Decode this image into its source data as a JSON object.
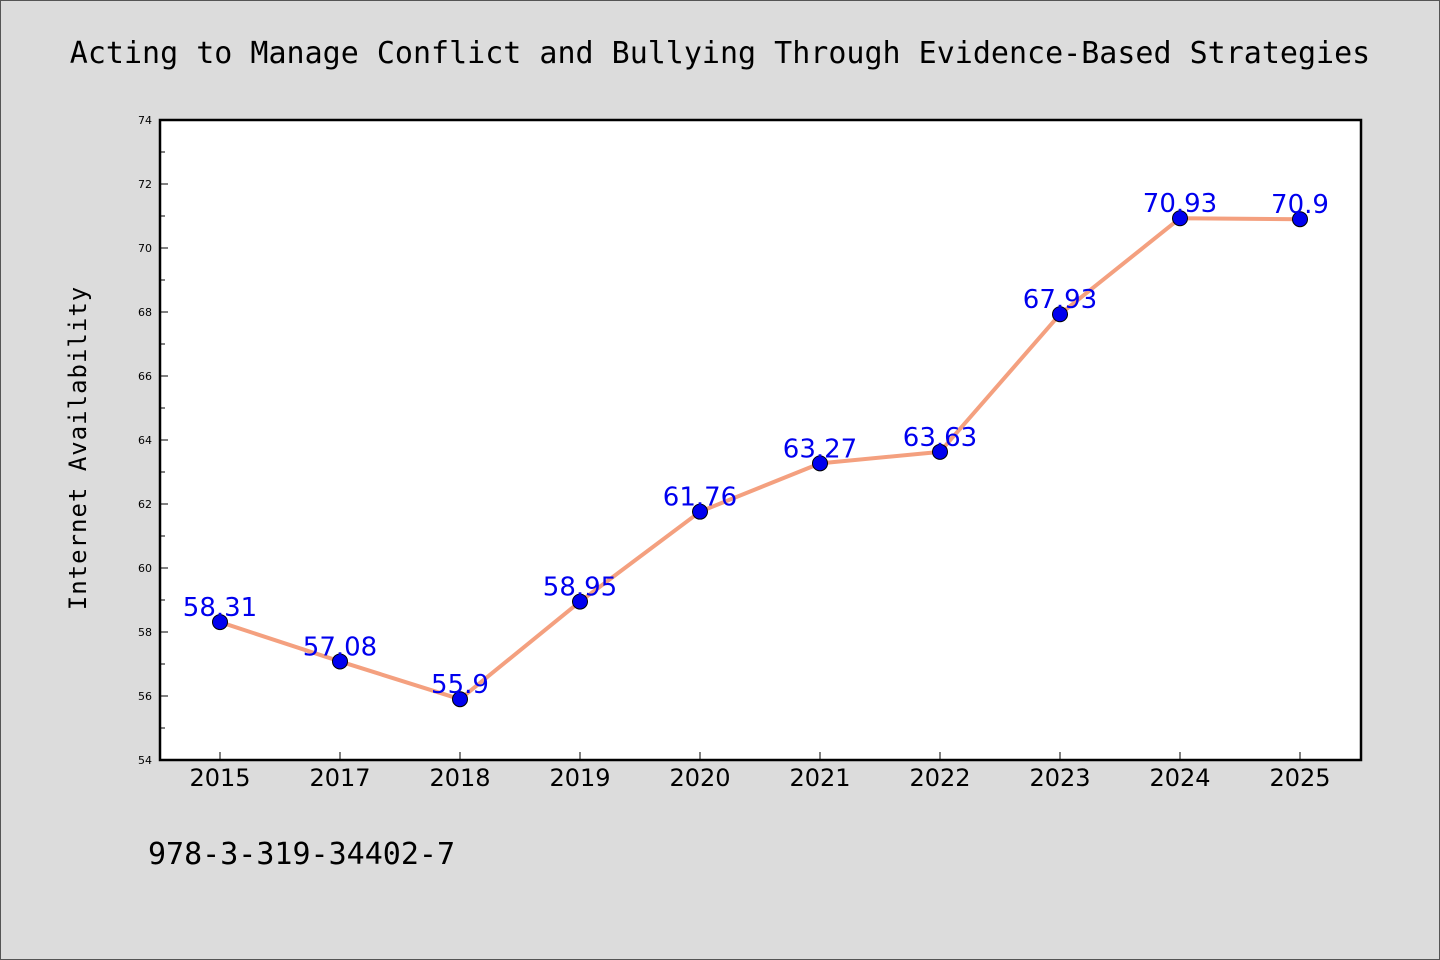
{
  "chart_data": {
    "type": "line",
    "title": "Acting to Manage Conflict and Bullying Through Evidence-Based Strategies",
    "xlabel": "",
    "ylabel": "Internet Availability",
    "categories": [
      "2015",
      "2017",
      "2018",
      "2019",
      "2020",
      "2021",
      "2022",
      "2023",
      "2024",
      "2025"
    ],
    "series": [
      {
        "values": [
          58.31,
          57.08,
          55.9,
          58.95,
          61.76,
          63.27,
          63.63,
          67.93,
          70.93,
          70.9
        ],
        "labels": [
          "58.31",
          "57.08",
          "55.9",
          "58.95",
          "61.76",
          "63.27",
          "63.63",
          "67.93",
          "70.93",
          "70.9"
        ]
      }
    ],
    "ylim": [
      54,
      74
    ],
    "yticks": [
      "54",
      "56",
      "58",
      "60",
      "62",
      "64",
      "66",
      "68",
      "70",
      "72",
      "74"
    ],
    "grid": false,
    "legend": "none",
    "colors": {
      "line": "#f4a07f",
      "marker": "#0000ee",
      "label": "#0000ee",
      "background": "#dcdcdc",
      "plot_background": "#ffffff"
    }
  },
  "footer": {
    "text": "978-3-319-34402-7"
  }
}
